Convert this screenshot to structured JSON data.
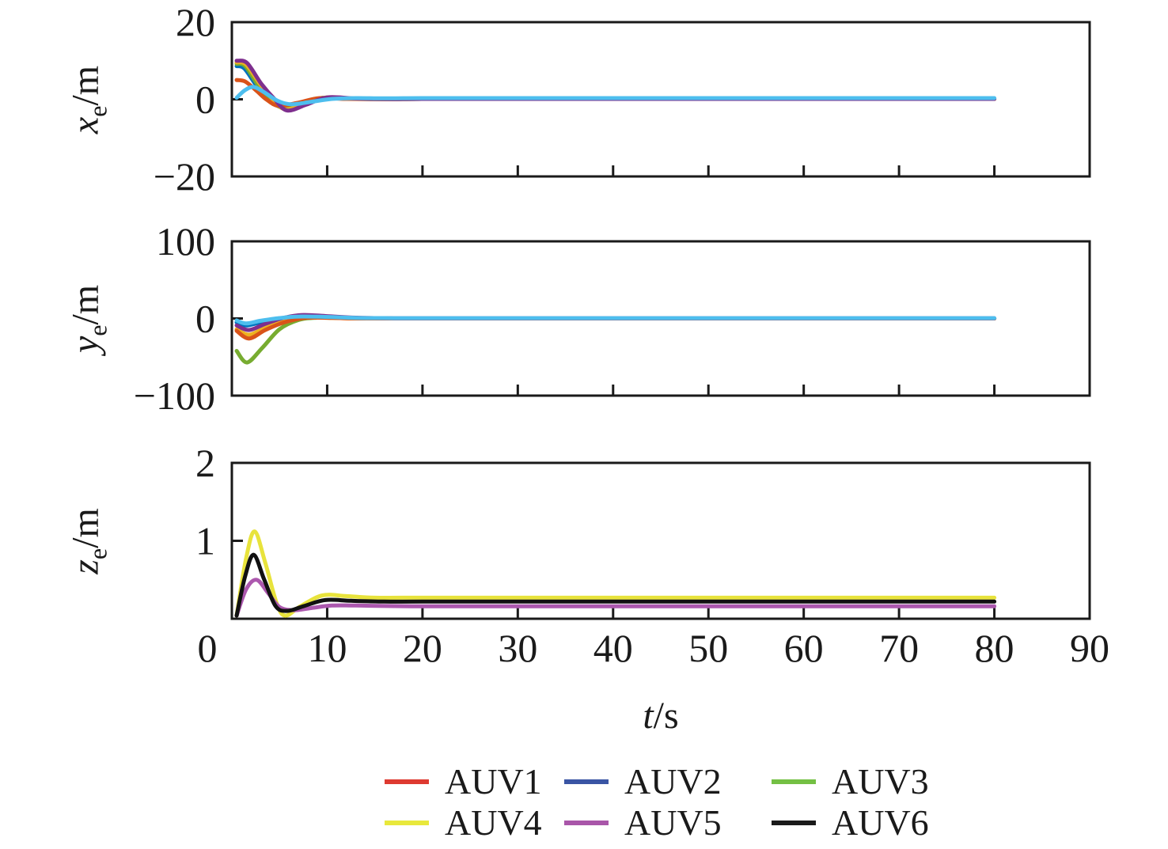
{
  "figure": {
    "background": "#ffffff",
    "axis_color": "#1a1a1a",
    "xlabel": {
      "var": "t",
      "unit": "/s"
    },
    "x": {
      "lim": [
        0,
        90
      ],
      "ticks": [
        {
          "value": 0,
          "label": "0",
          "shift": -31
        },
        {
          "value": 10,
          "label": "10"
        },
        {
          "value": 20,
          "label": "20"
        },
        {
          "value": 30,
          "label": "30"
        },
        {
          "value": 40,
          "label": "40"
        },
        {
          "value": 50,
          "label": "50"
        },
        {
          "value": 60,
          "label": "60"
        },
        {
          "value": 70,
          "label": "70"
        },
        {
          "value": 80,
          "label": "80"
        },
        {
          "value": 90,
          "label": "90"
        }
      ]
    }
  },
  "legend": {
    "position": "below",
    "items": [
      {
        "label": "AUV1",
        "color": "#DE3A31"
      },
      {
        "label": "AUV2",
        "color": "#3A55A4"
      },
      {
        "label": "AUV3",
        "color": "#74C044"
      },
      {
        "label": "AUV4",
        "color": "#E8E83C"
      },
      {
        "label": "AUV5",
        "color": "#A956A9"
      },
      {
        "label": "AUV6",
        "color": "#1A1A1A"
      }
    ]
  },
  "chart_data": [
    {
      "id": "xe",
      "type": "line",
      "ylabel": {
        "var": "x",
        "sub": "e",
        "unit": "/m"
      },
      "ylim": [
        -20,
        20
      ],
      "yticks": [
        {
          "value": 20,
          "label": "20"
        },
        {
          "value": 0,
          "label": "0"
        },
        {
          "value": -20,
          "label": "−20"
        }
      ],
      "grid": false,
      "series": [
        {
          "name": "blue",
          "color": "#0072BD",
          "points": [
            [
              0.5,
              8.6
            ],
            [
              1.3,
              8.0
            ],
            [
              2.6,
              3.5
            ],
            [
              3.9,
              0
            ],
            [
              5.2,
              -2.0
            ],
            [
              7.2,
              -1.0
            ],
            [
              9.5,
              0.35
            ],
            [
              12,
              0.15
            ],
            [
              16,
              0.05
            ],
            [
              20,
              0.1
            ],
            [
              40,
              0.1
            ],
            [
              60,
              0.1
            ],
            [
              80,
              0.1
            ]
          ]
        },
        {
          "name": "green",
          "color": "#77AC30",
          "points": [
            [
              0.5,
              9.2
            ],
            [
              1.4,
              8.6
            ],
            [
              2.8,
              3.5
            ],
            [
              4.1,
              0
            ],
            [
              5.4,
              -2.3
            ],
            [
              7.4,
              -1.1
            ],
            [
              9.6,
              0.4
            ],
            [
              12,
              0.15
            ],
            [
              16,
              0.05
            ],
            [
              20,
              0.1
            ],
            [
              40,
              0.1
            ],
            [
              60,
              0.1
            ],
            [
              80,
              0.1
            ]
          ]
        },
        {
          "name": "yellow",
          "color": "#EDB120",
          "points": [
            [
              0.5,
              9.6
            ],
            [
              1.5,
              9.0
            ],
            [
              3.0,
              3.8
            ],
            [
              4.3,
              0
            ],
            [
              5.6,
              -2.6
            ],
            [
              7.6,
              -1.2
            ],
            [
              9.8,
              0.45
            ],
            [
              12.5,
              0.2
            ],
            [
              16,
              0.05
            ],
            [
              20,
              0.1
            ],
            [
              40,
              0.1
            ],
            [
              60,
              0.1
            ],
            [
              80,
              0.1
            ]
          ]
        },
        {
          "name": "orange",
          "color": "#D95319",
          "points": [
            [
              0.5,
              5.0
            ],
            [
              1.4,
              4.6
            ],
            [
              2.6,
              2.2
            ],
            [
              3.6,
              0
            ],
            [
              4.9,
              -1.7
            ],
            [
              6.9,
              -0.9
            ],
            [
              9.2,
              0.3
            ],
            [
              12,
              0.1
            ],
            [
              16,
              0.05
            ],
            [
              20,
              0.1
            ],
            [
              40,
              0.1
            ],
            [
              60,
              0.1
            ],
            [
              80,
              0.1
            ]
          ]
        },
        {
          "name": "purple",
          "color": "#7E2F8E",
          "points": [
            [
              0.5,
              10.0
            ],
            [
              1.6,
              9.4
            ],
            [
              3.1,
              4.0
            ],
            [
              4.5,
              0
            ],
            [
              5.8,
              -2.9
            ],
            [
              7.8,
              -1.4
            ],
            [
              10,
              0.5
            ],
            [
              13,
              0.2
            ],
            [
              17,
              0.05
            ],
            [
              20,
              0.1
            ],
            [
              40,
              0.1
            ],
            [
              60,
              0.1
            ],
            [
              80,
              0.1
            ]
          ]
        },
        {
          "name": "cyan",
          "color": "#4DBEEE",
          "points": [
            [
              0.5,
              0.4
            ],
            [
              1.4,
              2.4
            ],
            [
              2.3,
              3.2
            ],
            [
              3.4,
              1.8
            ],
            [
              4.8,
              -0.4
            ],
            [
              6.2,
              -1.3
            ],
            [
              8.2,
              -0.7
            ],
            [
              10.5,
              0.1
            ],
            [
              13,
              0.3
            ],
            [
              16,
              0.25
            ],
            [
              20,
              0.3
            ],
            [
              40,
              0.3
            ],
            [
              60,
              0.3
            ],
            [
              80,
              0.3
            ]
          ]
        }
      ]
    },
    {
      "id": "ye",
      "type": "line",
      "ylabel": {
        "var": "y",
        "sub": "e",
        "unit": "/m"
      },
      "ylim": [
        -100,
        100
      ],
      "yticks": [
        {
          "value": 100,
          "label": "100"
        },
        {
          "value": 0,
          "label": "0"
        },
        {
          "value": -100,
          "label": "−100"
        }
      ],
      "grid": false,
      "series": [
        {
          "name": "blue",
          "color": "#0072BD",
          "points": [
            [
              0.5,
              -5
            ],
            [
              1.5,
              -9
            ],
            [
              3,
              -5
            ],
            [
              5,
              0
            ],
            [
              7,
              2
            ],
            [
              9.5,
              1.5
            ],
            [
              12,
              0.5
            ],
            [
              16,
              0
            ],
            [
              20,
              0
            ],
            [
              40,
              0
            ],
            [
              60,
              0
            ],
            [
              80,
              0
            ]
          ]
        },
        {
          "name": "green",
          "color": "#77AC30",
          "points": [
            [
              0.5,
              -42
            ],
            [
              1.6,
              -57
            ],
            [
              3.2,
              -38
            ],
            [
              5,
              -14
            ],
            [
              7,
              -2
            ],
            [
              9,
              1
            ],
            [
              12,
              0.5
            ],
            [
              16,
              0
            ],
            [
              20,
              0
            ],
            [
              40,
              0
            ],
            [
              60,
              0
            ],
            [
              80,
              0
            ]
          ]
        },
        {
          "name": "yellow",
          "color": "#EDB120",
          "points": [
            [
              0.5,
              -14
            ],
            [
              1.8,
              -21
            ],
            [
              3.5,
              -12
            ],
            [
              5.5,
              -3
            ],
            [
              7.5,
              1
            ],
            [
              9.5,
              1
            ],
            [
              12,
              0.3
            ],
            [
              16,
              0
            ],
            [
              20,
              0
            ],
            [
              40,
              0
            ],
            [
              60,
              0
            ],
            [
              80,
              0
            ]
          ]
        },
        {
          "name": "orange",
          "color": "#D95319",
          "points": [
            [
              0.5,
              -16
            ],
            [
              1.8,
              -26
            ],
            [
              3.5,
              -15
            ],
            [
              5.5,
              -5
            ],
            [
              7.5,
              0.5
            ],
            [
              9.5,
              1
            ],
            [
              12,
              0.3
            ],
            [
              16,
              0
            ],
            [
              20,
              0
            ],
            [
              40,
              0
            ],
            [
              60,
              0
            ],
            [
              80,
              0
            ]
          ]
        },
        {
          "name": "purple",
          "color": "#7E2F8E",
          "points": [
            [
              0.5,
              -9
            ],
            [
              1.8,
              -15
            ],
            [
              3.5,
              -7
            ],
            [
              5.5,
              1
            ],
            [
              7.5,
              4.5
            ],
            [
              10,
              3
            ],
            [
              13,
              1
            ],
            [
              17,
              0.3
            ],
            [
              20,
              0.2
            ],
            [
              40,
              0.2
            ],
            [
              60,
              0.2
            ],
            [
              80,
              0.2
            ]
          ]
        },
        {
          "name": "cyan",
          "color": "#4DBEEE",
          "points": [
            [
              0.5,
              -2.5
            ],
            [
              1.5,
              -6.5
            ],
            [
              3,
              -3
            ],
            [
              5,
              0.5
            ],
            [
              7,
              2.5
            ],
            [
              9.5,
              2.2
            ],
            [
              13,
              0.8
            ],
            [
              17,
              0.4
            ],
            [
              20,
              0.4
            ],
            [
              40,
              0.4
            ],
            [
              60,
              0.4
            ],
            [
              80,
              0.4
            ]
          ]
        }
      ]
    },
    {
      "id": "ze",
      "type": "line",
      "ylabel": {
        "var": "z",
        "sub": "e",
        "unit": "/m"
      },
      "ylim": [
        0,
        2
      ],
      "yticks": [
        {
          "value": 2,
          "label": "2"
        },
        {
          "value": 1,
          "label": "1"
        },
        {
          "value": 0,
          "label": ""
        }
      ],
      "grid": false,
      "series": [
        {
          "name": "yellow",
          "color": "#E8E33C",
          "points": [
            [
              0.5,
              0.04
            ],
            [
              1.5,
              0.78
            ],
            [
              2.4,
              1.12
            ],
            [
              3.5,
              0.72
            ],
            [
              4.7,
              0.2
            ],
            [
              5.6,
              0.04
            ],
            [
              7.2,
              0.16
            ],
            [
              9.5,
              0.3
            ],
            [
              12,
              0.29
            ],
            [
              15,
              0.27
            ],
            [
              20,
              0.27
            ],
            [
              40,
              0.27
            ],
            [
              60,
              0.27
            ],
            [
              80,
              0.27
            ]
          ]
        },
        {
          "name": "purple",
          "color": "#AC58AE",
          "points": [
            [
              0.5,
              0.04
            ],
            [
              1.5,
              0.38
            ],
            [
              2.6,
              0.5
            ],
            [
              3.8,
              0.33
            ],
            [
              5,
              0.15
            ],
            [
              6.5,
              0.11
            ],
            [
              8.5,
              0.14
            ],
            [
              10.5,
              0.17
            ],
            [
              13,
              0.17
            ],
            [
              20,
              0.16
            ],
            [
              40,
              0.16
            ],
            [
              60,
              0.16
            ],
            [
              80,
              0.16
            ]
          ]
        },
        {
          "name": "black",
          "color": "#111111",
          "points": [
            [
              0.5,
              0.04
            ],
            [
              1.4,
              0.55
            ],
            [
              2.3,
              0.82
            ],
            [
              3.4,
              0.5
            ],
            [
              4.6,
              0.16
            ],
            [
              5.8,
              0.1
            ],
            [
              7.5,
              0.16
            ],
            [
              9.8,
              0.24
            ],
            [
              12.5,
              0.23
            ],
            [
              16,
              0.22
            ],
            [
              20,
              0.22
            ],
            [
              40,
              0.22
            ],
            [
              60,
              0.22
            ],
            [
              80,
              0.22
            ]
          ]
        }
      ]
    }
  ]
}
